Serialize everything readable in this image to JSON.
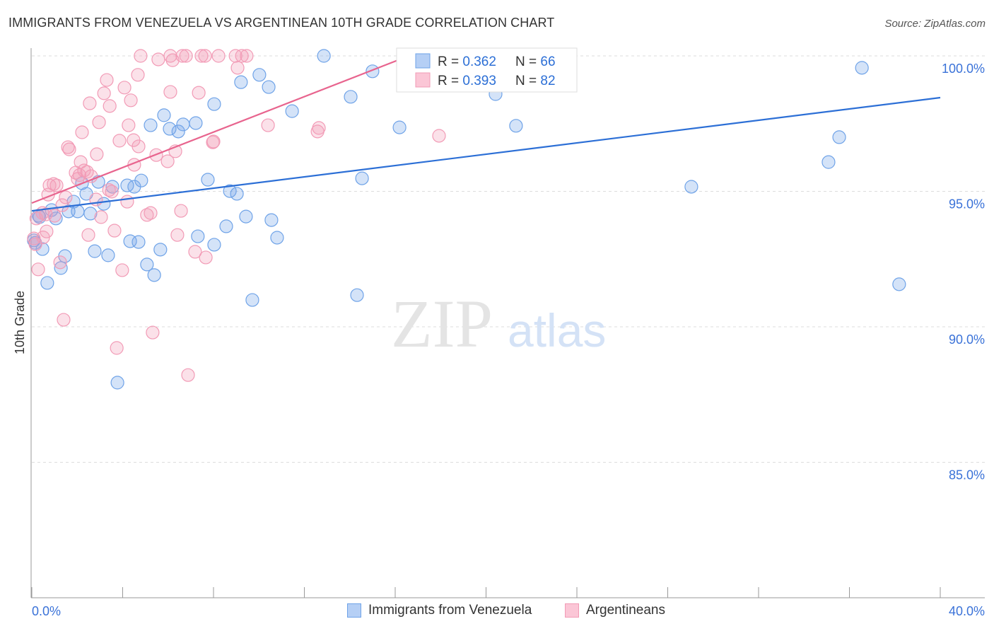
{
  "chart_data": {
    "type": "scatter",
    "title": "IMMIGRANTS FROM VENEZUELA VS ARGENTINEAN 10TH GRADE CORRELATION CHART",
    "source": "Source: ZipAtlas.com",
    "ylabel": "10th Grade",
    "xlabel": "",
    "xlim": [
      0,
      40
    ],
    "ylim": [
      80,
      100.3
    ],
    "x_tick_labels": [
      "0.0%",
      "40.0%"
    ],
    "y_ticks": [
      100,
      95,
      90,
      85
    ],
    "y_tick_labels": [
      "100.0%",
      "95.0%",
      "90.0%",
      "85.0%"
    ],
    "grid": true,
    "watermark": "ZIPatlas",
    "legend_stats": [
      {
        "r_label": "R = ",
        "r": "0.362",
        "n_label": "N = ",
        "n": "66"
      },
      {
        "r_label": "R = ",
        "r": "0.393",
        "n_label": "N = ",
        "n": "82"
      }
    ],
    "series": [
      {
        "name": "Immigrants from Venezuela",
        "color": "#6fa3e8",
        "line_color": "#2c6fd6",
        "trend": [
          [
            0,
            94.28
          ],
          [
            40,
            98.46
          ]
        ],
        "points": [
          [
            12.86,
            100.0
          ],
          [
            17.21,
            99.95
          ],
          [
            21.95,
            99.95
          ],
          [
            36.55,
            99.56
          ],
          [
            15.0,
            99.43
          ],
          [
            10.02,
            99.3
          ],
          [
            9.21,
            99.03
          ],
          [
            10.43,
            98.85
          ],
          [
            14.04,
            98.49
          ],
          [
            20.42,
            98.59
          ],
          [
            8.03,
            98.22
          ],
          [
            11.46,
            97.96
          ],
          [
            5.82,
            97.81
          ],
          [
            5.23,
            97.44
          ],
          [
            6.07,
            97.31
          ],
          [
            6.45,
            97.21
          ],
          [
            6.66,
            97.47
          ],
          [
            7.22,
            97.52
          ],
          [
            16.19,
            97.36
          ],
          [
            21.32,
            97.42
          ],
          [
            35.55,
            97.0
          ],
          [
            35.08,
            96.08
          ],
          [
            14.54,
            95.48
          ],
          [
            29.04,
            95.17
          ],
          [
            7.75,
            95.43
          ],
          [
            4.82,
            95.4
          ],
          [
            4.2,
            95.22
          ],
          [
            4.51,
            95.17
          ],
          [
            3.55,
            95.17
          ],
          [
            2.93,
            95.35
          ],
          [
            2.21,
            95.3
          ],
          [
            8.72,
            95.01
          ],
          [
            9.03,
            94.91
          ],
          [
            2.4,
            94.91
          ],
          [
            1.84,
            94.62
          ],
          [
            3.17,
            94.54
          ],
          [
            0.87,
            94.31
          ],
          [
            1.62,
            94.26
          ],
          [
            2.02,
            94.26
          ],
          [
            2.58,
            94.18
          ],
          [
            0.34,
            94.05
          ],
          [
            1.06,
            94.0
          ],
          [
            9.43,
            94.07
          ],
          [
            10.55,
            93.94
          ],
          [
            8.56,
            93.71
          ],
          [
            7.31,
            93.34
          ],
          [
            10.8,
            93.29
          ],
          [
            4.33,
            93.16
          ],
          [
            4.7,
            93.13
          ],
          [
            8.03,
            93.03
          ],
          [
            0.09,
            93.19
          ],
          [
            0.47,
            92.87
          ],
          [
            5.66,
            92.85
          ],
          [
            2.77,
            92.79
          ],
          [
            3.36,
            92.64
          ],
          [
            1.46,
            92.61
          ],
          [
            5.07,
            92.3
          ],
          [
            1.28,
            92.17
          ],
          [
            5.39,
            91.91
          ],
          [
            0.68,
            91.62
          ],
          [
            38.19,
            91.57
          ],
          [
            14.32,
            91.17
          ],
          [
            9.71,
            90.99
          ],
          [
            3.77,
            87.94
          ],
          [
            0.15,
            93.1
          ],
          [
            0.3,
            94.1
          ]
        ]
      },
      {
        "name": "Argentineans",
        "color": "#f29bb6",
        "line_color": "#e8648e",
        "trend": [
          [
            0,
            94.57
          ],
          [
            16.6,
            100.0
          ]
        ],
        "points": [
          [
            4.79,
            100
          ],
          [
            6.1,
            100
          ],
          [
            6.63,
            100
          ],
          [
            6.79,
            100
          ],
          [
            7.47,
            100
          ],
          [
            7.63,
            100
          ],
          [
            8.22,
            100
          ],
          [
            8.97,
            100
          ],
          [
            9.25,
            100
          ],
          [
            9.46,
            100
          ],
          [
            5.57,
            99.87
          ],
          [
            6.2,
            99.84
          ],
          [
            9.06,
            99.56
          ],
          [
            4.67,
            99.3
          ],
          [
            3.3,
            99.11
          ],
          [
            3.18,
            98.62
          ],
          [
            4.08,
            98.83
          ],
          [
            6.1,
            98.67
          ],
          [
            7.35,
            98.64
          ],
          [
            4.36,
            98.36
          ],
          [
            2.55,
            98.25
          ],
          [
            3.43,
            98.15
          ],
          [
            2.96,
            97.55
          ],
          [
            4.26,
            97.44
          ],
          [
            10.4,
            97.44
          ],
          [
            12.64,
            97.34
          ],
          [
            12.58,
            97.21
          ],
          [
            2.21,
            97.18
          ],
          [
            17.93,
            97.05
          ],
          [
            3.86,
            96.87
          ],
          [
            4.48,
            96.89
          ],
          [
            7.97,
            96.81
          ],
          [
            8.0,
            96.84
          ],
          [
            1.59,
            96.63
          ],
          [
            1.65,
            96.55
          ],
          [
            4.7,
            96.66
          ],
          [
            6.32,
            96.48
          ],
          [
            5.48,
            96.34
          ],
          [
            2.86,
            96.37
          ],
          [
            2.15,
            96.08
          ],
          [
            5.98,
            96.11
          ],
          [
            4.51,
            95.98
          ],
          [
            1.93,
            95.69
          ],
          [
            2.3,
            95.77
          ],
          [
            2.43,
            95.72
          ],
          [
            2.61,
            95.56
          ],
          [
            2.02,
            95.46
          ],
          [
            0.78,
            95.22
          ],
          [
            0.96,
            95.27
          ],
          [
            1.09,
            95.22
          ],
          [
            3.52,
            94.99
          ],
          [
            0.72,
            94.88
          ],
          [
            1.49,
            94.78
          ],
          [
            2.83,
            94.7
          ],
          [
            4.2,
            94.62
          ],
          [
            1.34,
            94.49
          ],
          [
            6.57,
            94.28
          ],
          [
            5.23,
            94.2
          ],
          [
            5.07,
            94.13
          ],
          [
            3.05,
            94.05
          ],
          [
            0.47,
            94.2
          ],
          [
            0.62,
            94.15
          ],
          [
            0.65,
            93.52
          ],
          [
            3.64,
            93.55
          ],
          [
            2.49,
            93.39
          ],
          [
            6.41,
            93.39
          ],
          [
            0.09,
            93.26
          ],
          [
            0.16,
            93.05
          ],
          [
            7.19,
            92.77
          ],
          [
            7.66,
            92.56
          ],
          [
            1.25,
            92.38
          ],
          [
            0.28,
            92.12
          ],
          [
            3.98,
            92.09
          ],
          [
            1.4,
            90.26
          ],
          [
            5.32,
            89.79
          ],
          [
            3.74,
            89.22
          ],
          [
            6.88,
            88.22
          ],
          [
            0.2,
            94.0
          ],
          [
            1.0,
            94.1
          ],
          [
            2.1,
            95.6
          ],
          [
            3.4,
            95.05
          ],
          [
            0.5,
            93.3
          ]
        ]
      }
    ]
  }
}
